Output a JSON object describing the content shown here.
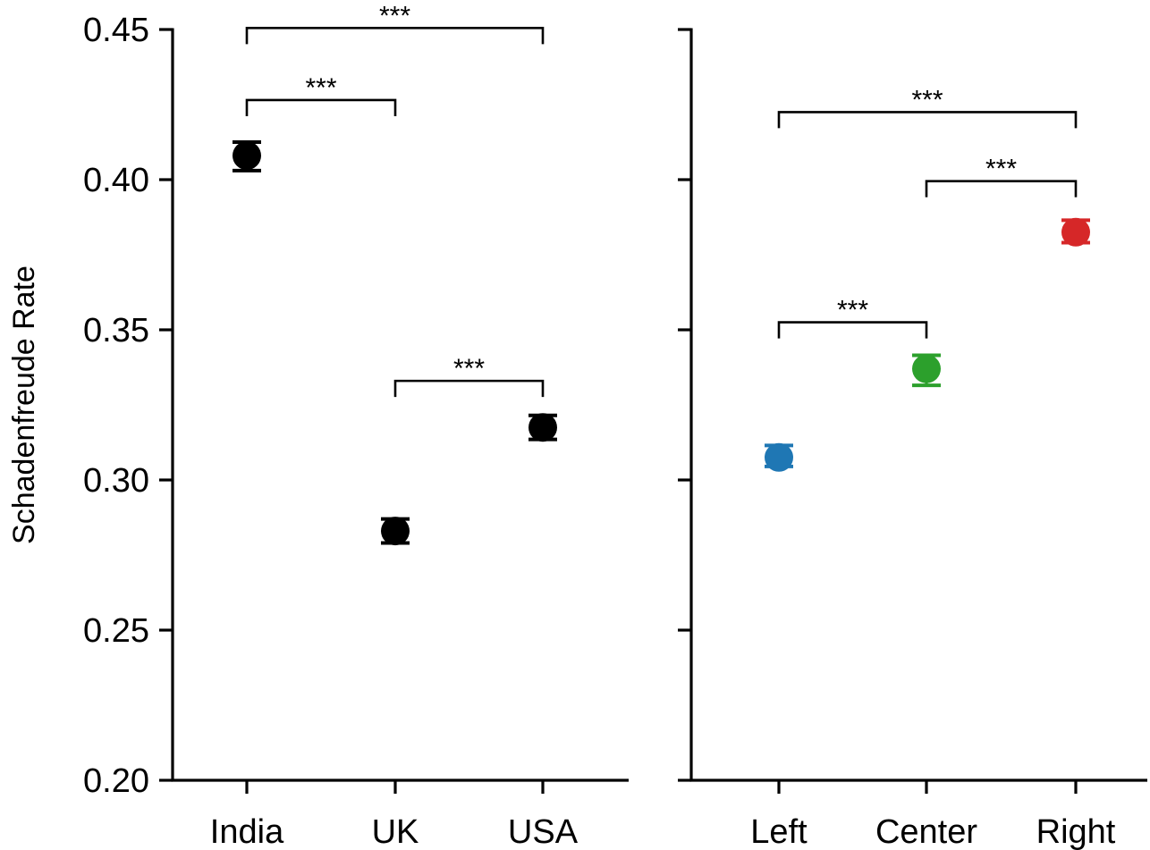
{
  "chart_data": [
    {
      "type": "scatter",
      "panel": "left",
      "ylabel": "Schadenfreude Rate",
      "ylim": [
        0.2,
        0.45
      ],
      "yticks": [
        0.2,
        0.25,
        0.3,
        0.35,
        0.4,
        0.45
      ],
      "ytick_labels": [
        "0.20",
        "0.25",
        "0.30",
        "0.35",
        "0.40",
        "0.45"
      ],
      "categories": [
        "India",
        "UK",
        "USA"
      ],
      "values": [
        0.408,
        0.283,
        0.3175
      ],
      "error_low": [
        0.403,
        0.279,
        0.3135
      ],
      "error_high": [
        0.4125,
        0.287,
        0.3215
      ],
      "colors": [
        "#000000",
        "#000000",
        "#000000"
      ],
      "significance": [
        {
          "from": 0,
          "to": 1,
          "label": "***",
          "y": 0.4265
        },
        {
          "from": 0,
          "to": 2,
          "label": "***",
          "y": 0.4505
        },
        {
          "from": 1,
          "to": 2,
          "label": "***",
          "y": 0.333
        }
      ]
    },
    {
      "type": "scatter",
      "panel": "right",
      "ylim": [
        0.2,
        0.45
      ],
      "yticks": [
        0.2,
        0.25,
        0.3,
        0.35,
        0.4,
        0.45
      ],
      "categories": [
        "Left",
        "Center",
        "Right"
      ],
      "values": [
        0.3075,
        0.337,
        0.3825
      ],
      "error_low": [
        0.3045,
        0.3315,
        0.379
      ],
      "error_high": [
        0.3115,
        0.3415,
        0.3865
      ],
      "colors": [
        "#1f77b4",
        "#2ca02c",
        "#d62728"
      ],
      "significance": [
        {
          "from": 0,
          "to": 1,
          "label": "***",
          "y": 0.3525
        },
        {
          "from": 1,
          "to": 2,
          "label": "***",
          "y": 0.3995
        },
        {
          "from": 0,
          "to": 2,
          "label": "***",
          "y": 0.4225
        }
      ]
    }
  ]
}
